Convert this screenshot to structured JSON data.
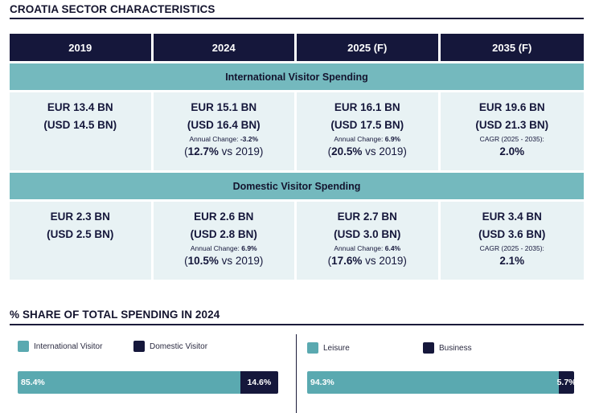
{
  "title": "CROATIA SECTOR CHARACTERISTICS",
  "columns": [
    "2019",
    "2024",
    "2025 (F)",
    "2035 (F)"
  ],
  "international": {
    "label": "International Visitor Spending",
    "cells": [
      {
        "eur": "EUR 13.4 BN",
        "usd": "(USD 14.5 BN)"
      },
      {
        "eur": "EUR 15.1 BN",
        "usd": "(USD 16.4 BN)",
        "change_label": "Annual Change:",
        "change_value": "-3.2%",
        "vs_value": "12.7%",
        "vs_text": "vs 2019"
      },
      {
        "eur": "EUR 16.1 BN",
        "usd": "(USD 17.5 BN)",
        "change_label": "Annual Change:",
        "change_value": "6.9%",
        "vs_value": "20.5%",
        "vs_text": "vs 2019"
      },
      {
        "eur": "EUR 19.6 BN",
        "usd": "(USD 21.3 BN)",
        "cagr_label": "CAGR  (2025 - 2035):",
        "cagr_value": "2.0%"
      }
    ]
  },
  "domestic": {
    "label": "Domestic Visitor Spending",
    "cells": [
      {
        "eur": "EUR 2.3 BN",
        "usd": "(USD 2.5 BN)"
      },
      {
        "eur": "EUR 2.6 BN",
        "usd": "(USD 2.8 BN)",
        "change_label": "Annual Change:",
        "change_value": "6.9%",
        "vs_value": "10.5%",
        "vs_text": "vs 2019"
      },
      {
        "eur": "EUR 2.7 BN",
        "usd": "(USD 3.0 BN)",
        "change_label": "Annual Change:",
        "change_value": "6.4%",
        "vs_value": "17.6%",
        "vs_text": "vs 2019"
      },
      {
        "eur": "EUR 3.4 BN",
        "usd": "(USD 3.6 BN)",
        "cagr_label": "CAGR  (2025 - 2035):",
        "cagr_value": "2.1%"
      }
    ]
  },
  "share": {
    "title": "% SHARE OF TOTAL SPENDING IN 2024",
    "left": {
      "legend": [
        "International Visitor",
        "Domestic Visitor"
      ],
      "labels": [
        "85.4%",
        "14.6%"
      ],
      "values": [
        85.4,
        14.6
      ]
    },
    "right": {
      "legend": [
        "Leisure",
        "Business"
      ],
      "labels": [
        "94.3%",
        "5.7%"
      ],
      "values": [
        94.3,
        5.7
      ]
    }
  },
  "colors": {
    "navy": "#15173b",
    "teal": "#74b9be",
    "bar_teal": "#5aa9b0",
    "cell_bg": "#e8f2f4"
  }
}
